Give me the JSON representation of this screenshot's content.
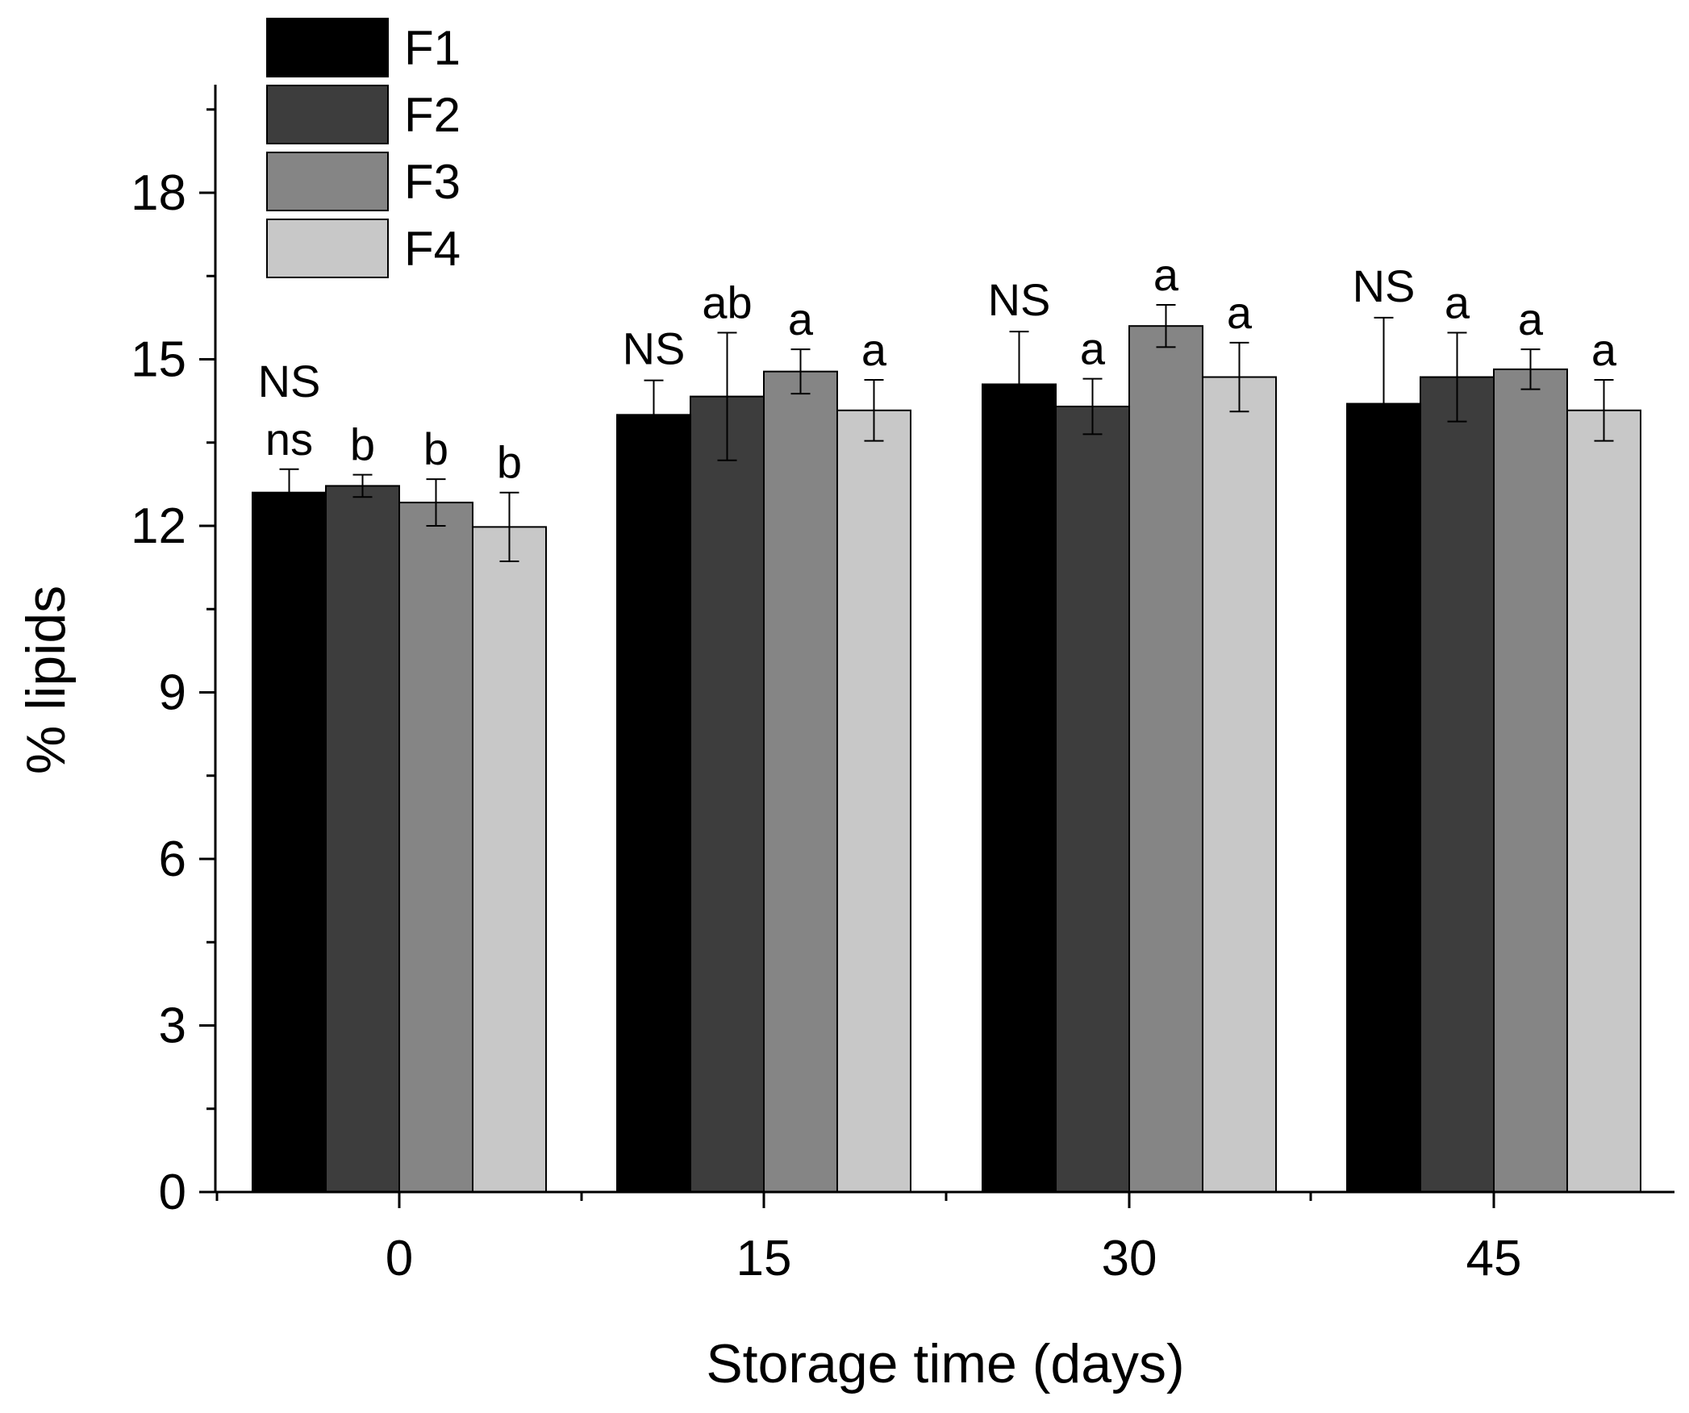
{
  "chart_data": {
    "type": "bar",
    "title": "",
    "xlabel": "Storage time (days)",
    "ylabel": "% lipids",
    "categories": [
      "0",
      "15",
      "30",
      "45"
    ],
    "ylim": [
      0,
      20
    ],
    "yticks": [
      0,
      3,
      6,
      9,
      12,
      15,
      18
    ],
    "legend_position": "top-left",
    "series": [
      {
        "name": "F1",
        "color": "#000000",
        "values": [
          12.6,
          14.0,
          14.55,
          14.2
        ],
        "errors": [
          0.42,
          0.62,
          0.95,
          1.55
        ],
        "labels": [
          "ns",
          "",
          "",
          ""
        ]
      },
      {
        "name": "F2",
        "color": "#3d3d3d",
        "values": [
          12.72,
          14.33,
          14.15,
          14.68
        ],
        "errors": [
          0.2,
          1.15,
          0.5,
          0.8
        ],
        "labels": [
          "b",
          "ab",
          "a",
          "a"
        ]
      },
      {
        "name": "F3",
        "color": "#858585",
        "values": [
          12.42,
          14.78,
          15.6,
          14.82
        ],
        "errors": [
          0.42,
          0.4,
          0.38,
          0.36
        ],
        "labels": [
          "b",
          "a",
          "a",
          "a"
        ]
      },
      {
        "name": "F4",
        "color": "#c8c8c8",
        "values": [
          11.98,
          14.08,
          14.68,
          14.08
        ],
        "errors": [
          0.62,
          0.55,
          0.62,
          0.55
        ],
        "labels": [
          "b",
          "a",
          "a",
          "a"
        ]
      }
    ],
    "group_labels": [
      "NS",
      "NS",
      "NS",
      "NS"
    ]
  }
}
